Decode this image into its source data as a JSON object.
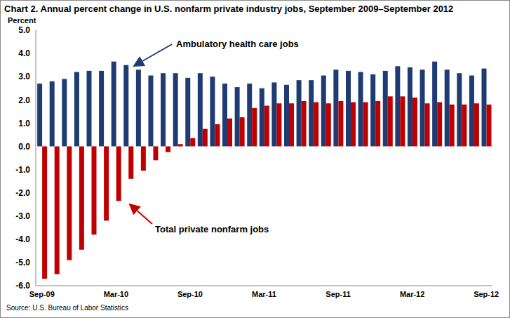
{
  "chart_data": {
    "type": "bar",
    "title": "Chart 2. Annual percent change in U.S. nonfarm private industry jobs, September 2009–September 2012",
    "y_label": "Percent",
    "source": "Source: U.S. Bureau of Labor Statistics",
    "categories": [
      "Sep-09",
      null,
      null,
      null,
      null,
      null,
      "Mar-10",
      null,
      null,
      null,
      null,
      null,
      "Sep-10",
      null,
      null,
      null,
      null,
      null,
      "Mar-11",
      null,
      null,
      null,
      null,
      null,
      "Sep-11",
      null,
      null,
      null,
      null,
      null,
      "Mar-12",
      null,
      null,
      null,
      null,
      null,
      "Sep-12"
    ],
    "series": [
      {
        "name": "Ambulatory health care jobs",
        "color": "#1f3b73",
        "values": [
          2.7,
          2.8,
          2.9,
          3.2,
          3.25,
          3.25,
          3.65,
          3.5,
          3.3,
          3.05,
          3.15,
          3.15,
          2.95,
          3.15,
          3.0,
          2.7,
          2.55,
          2.7,
          2.5,
          2.75,
          2.65,
          2.85,
          2.85,
          3.05,
          3.3,
          3.25,
          3.2,
          3.1,
          3.25,
          3.45,
          3.4,
          3.3,
          3.65,
          3.3,
          3.15,
          3.05,
          3.35
        ]
      },
      {
        "name": "Total private nonfarm jobs",
        "color": "#c00000",
        "values": [
          -5.7,
          -5.5,
          -4.9,
          -4.45,
          -3.8,
          -3.2,
          -2.35,
          -1.4,
          -1.05,
          -0.6,
          -0.25,
          0.1,
          0.35,
          0.75,
          0.95,
          1.2,
          1.25,
          1.65,
          1.75,
          1.85,
          1.85,
          1.95,
          1.9,
          1.85,
          1.95,
          1.9,
          1.9,
          1.95,
          2.15,
          2.15,
          2.1,
          1.85,
          1.9,
          1.8,
          1.8,
          1.85,
          1.8
        ]
      }
    ],
    "ylim": [
      -6,
      5
    ],
    "yticks": [
      {
        "value": -6,
        "label": "-6.0"
      },
      {
        "value": -5,
        "label": "-5.0"
      },
      {
        "value": -4,
        "label": "-4.0"
      },
      {
        "value": -3,
        "label": "-3.0"
      },
      {
        "value": -2,
        "label": "-2.0"
      },
      {
        "value": -1,
        "label": "-1.0"
      },
      {
        "value": 0,
        "label": "0.0"
      },
      {
        "value": 1,
        "label": "1.0"
      },
      {
        "value": 2,
        "label": "2.0"
      },
      {
        "value": 3,
        "label": "3.0"
      },
      {
        "value": 4,
        "label": "4.0"
      },
      {
        "value": 5,
        "label": "5.0"
      }
    ],
    "grid": false,
    "legend": "none"
  }
}
